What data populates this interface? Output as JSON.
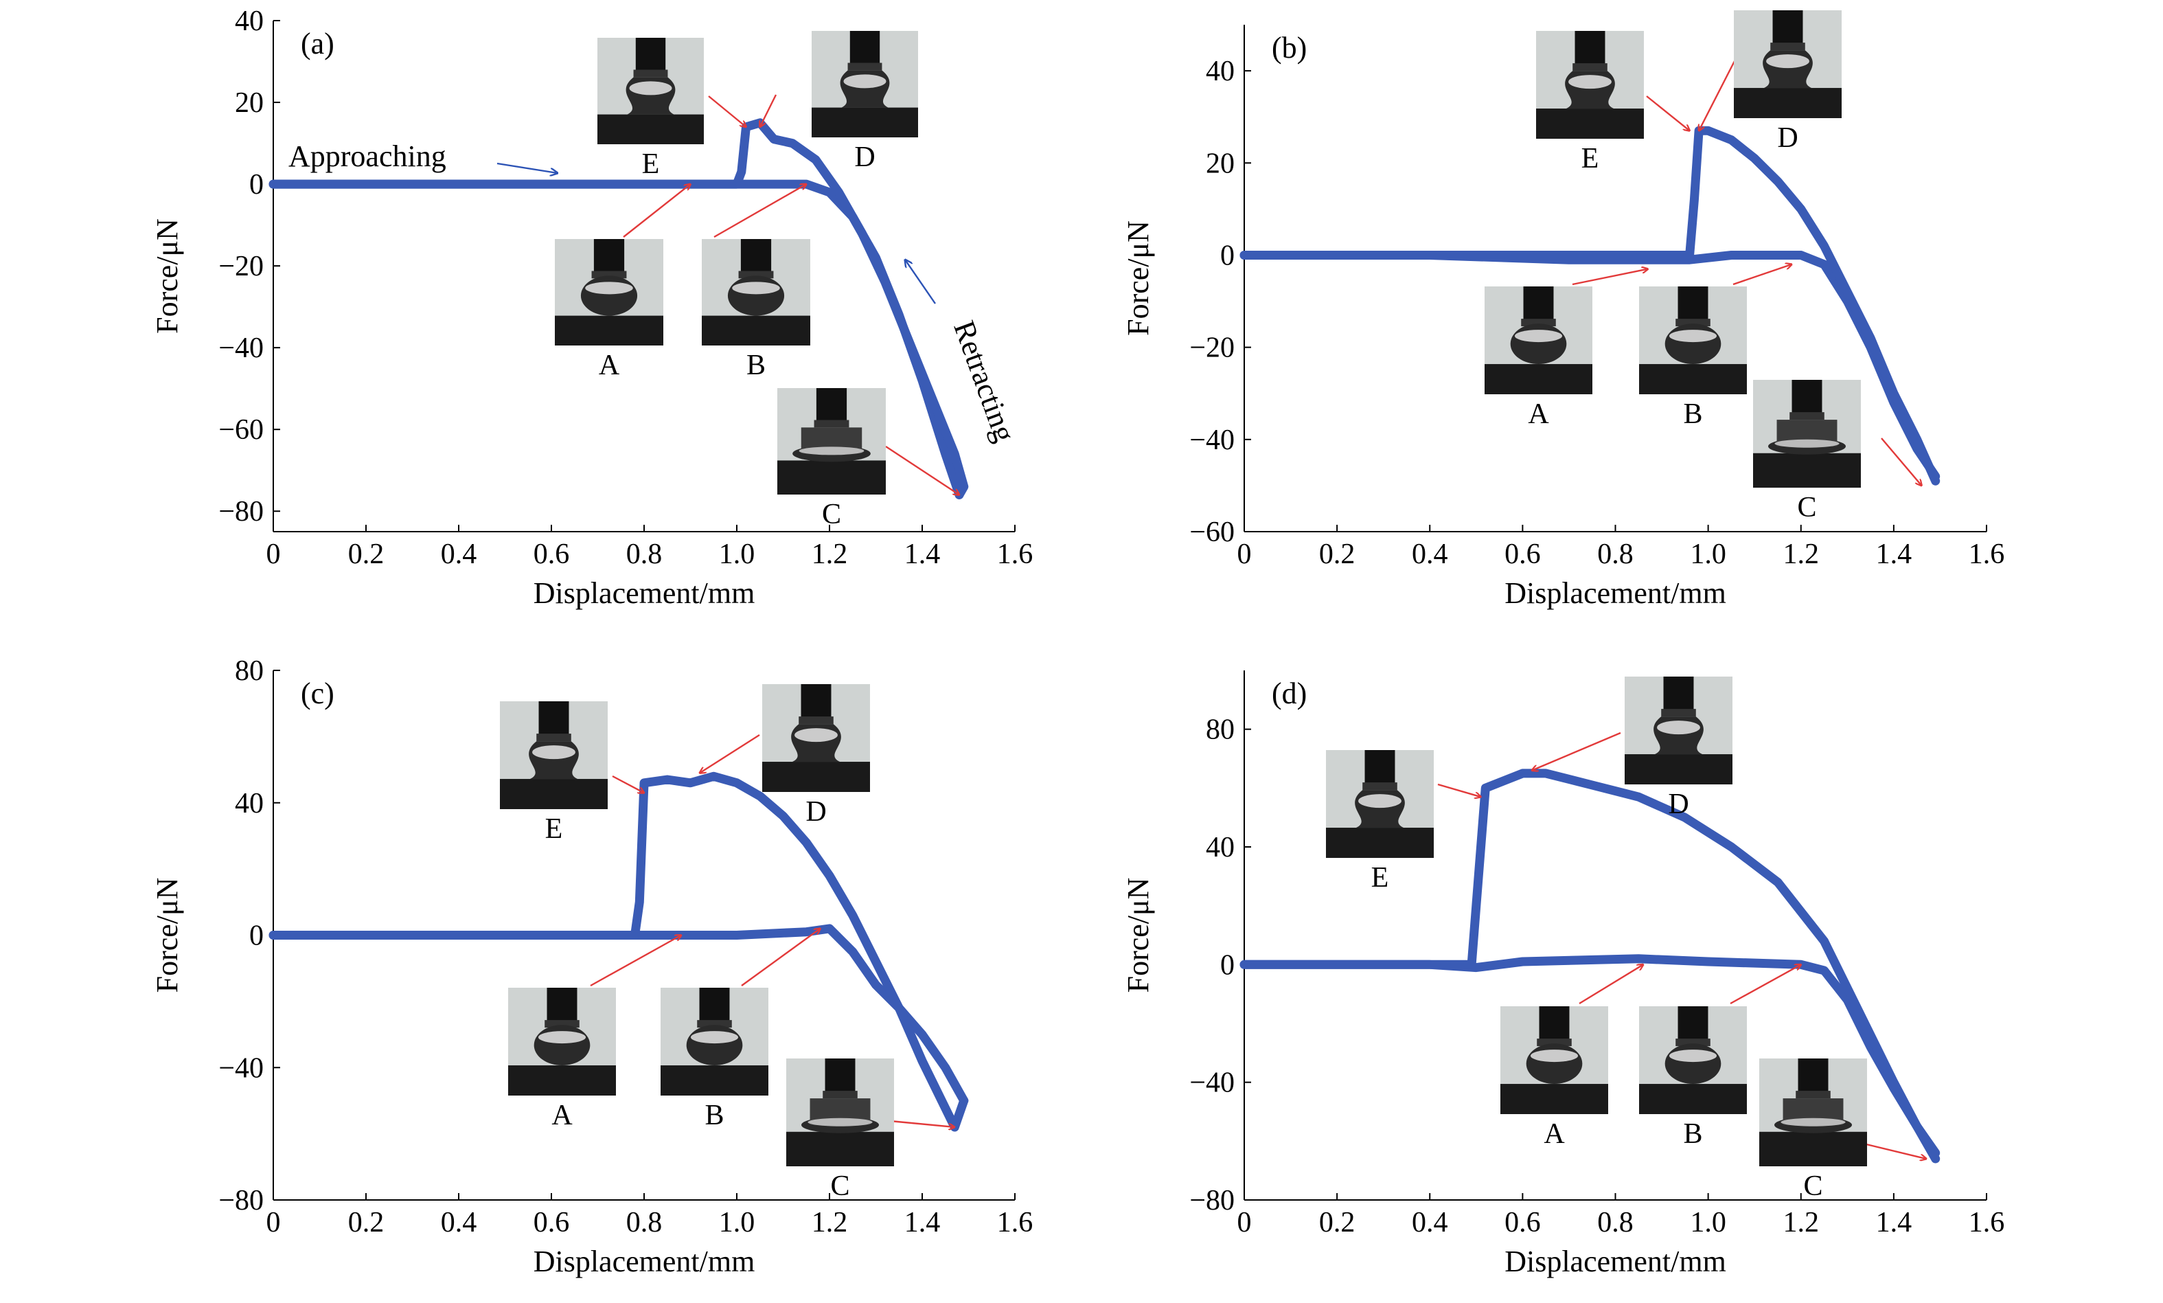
{
  "colors": {
    "curve": "#3a5bb5",
    "arrow_red": "#e23a3a",
    "arrow_blue": "#2b52b5",
    "axis": "#000000",
    "photo_bg": "#cfd3d2",
    "photo_dark": "#1a1a1a"
  },
  "chart_data": [
    {
      "id": "a",
      "panel_label": "(a)",
      "type": "line",
      "xlabel": "Displacement/mm",
      "ylabel": "Force/μN",
      "xlim": [
        0,
        1.6
      ],
      "ylim": [
        -85,
        40
      ],
      "xticks": [
        0,
        0.2,
        0.4,
        0.6,
        0.8,
        1.0,
        1.2,
        1.4,
        1.6
      ],
      "xtick_labels": [
        "0",
        "0.2",
        "0.4",
        "0.6",
        "0.8",
        "1.0",
        "1.2",
        "1.4",
        "1.6"
      ],
      "yticks": [
        40,
        20,
        0,
        -20,
        -40,
        -60,
        -80
      ],
      "ytick_labels": [
        "40",
        "20",
        "0",
        "−20",
        "−40",
        "−60",
        "−80"
      ],
      "series": [
        {
          "x": [
            0,
            0.2,
            0.4,
            0.6,
            0.8,
            0.95,
            1.02,
            1.15,
            1.2,
            1.25,
            1.3,
            1.35,
            1.4,
            1.45,
            1.48
          ],
          "y": [
            0,
            0,
            0,
            0,
            0,
            0,
            0,
            0,
            -2,
            -8,
            -18,
            -32,
            -48,
            -66,
            -76
          ]
        },
        {
          "x": [
            0,
            0.3,
            0.6,
            0.9,
            1.0,
            1.01,
            1.02,
            1.05,
            1.08,
            1.12,
            1.17,
            1.22,
            1.27,
            1.32,
            1.37,
            1.42,
            1.47,
            1.49,
            1.48
          ],
          "y": [
            0,
            0,
            0,
            0,
            0,
            3,
            14,
            15,
            11,
            10,
            6,
            -2,
            -12,
            -24,
            -38,
            -52,
            -66,
            -74,
            -76
          ]
        }
      ],
      "annotations": [
        {
          "text": "Approaching"
        },
        {
          "text": "Retracting"
        }
      ],
      "insets": [
        {
          "label": "E",
          "shape": "bridge",
          "x": 1.02,
          "y": 14
        },
        {
          "label": "D",
          "shape": "bridge",
          "x": 1.05,
          "y": 14
        },
        {
          "label": "A",
          "shape": "drop",
          "x": 0.9,
          "y": 0
        },
        {
          "label": "B",
          "shape": "drop",
          "x": 1.15,
          "y": 0
        },
        {
          "label": "C",
          "shape": "squash",
          "x": 1.48,
          "y": -76
        }
      ]
    },
    {
      "id": "b",
      "panel_label": "(b)",
      "type": "line",
      "xlabel": "Displacement/mm",
      "ylabel": "Force/μN",
      "xlim": [
        0,
        1.6
      ],
      "ylim": [
        -60,
        50
      ],
      "xticks": [
        0,
        0.2,
        0.4,
        0.6,
        0.8,
        1.0,
        1.2,
        1.4,
        1.6
      ],
      "xtick_labels": [
        "0",
        "0.2",
        "0.4",
        "0.6",
        "0.8",
        "1.0",
        "1.2",
        "1.4",
        "1.6"
      ],
      "yticks": [
        40,
        20,
        0,
        -20,
        -40,
        -60
      ],
      "ytick_labels": [
        "40",
        "20",
        "0",
        "−20",
        "−40",
        "−60"
      ],
      "series": [
        {
          "x": [
            0,
            0.4,
            0.7,
            0.9,
            0.96,
            1.05,
            1.2,
            1.25,
            1.3,
            1.35,
            1.4,
            1.45,
            1.49
          ],
          "y": [
            0,
            0,
            -1,
            -1,
            -1,
            0,
            0,
            -2,
            -10,
            -20,
            -32,
            -42,
            -48
          ]
        },
        {
          "x": [
            0,
            0.5,
            0.9,
            0.96,
            0.97,
            0.98,
            1.0,
            1.05,
            1.1,
            1.15,
            1.2,
            1.25,
            1.3,
            1.35,
            1.4,
            1.45,
            1.49
          ],
          "y": [
            0,
            0,
            0,
            0,
            12,
            27,
            27,
            25,
            21,
            16,
            10,
            2,
            -8,
            -18,
            -30,
            -40,
            -49
          ]
        }
      ],
      "annotations": [],
      "insets": [
        {
          "label": "E",
          "shape": "bridge",
          "x": 0.96,
          "y": 27
        },
        {
          "label": "D",
          "shape": "bridge",
          "x": 0.98,
          "y": 27
        },
        {
          "label": "A",
          "shape": "drop",
          "x": 0.87,
          "y": -3
        },
        {
          "label": "B",
          "shape": "drop",
          "x": 1.18,
          "y": -2
        },
        {
          "label": "C",
          "shape": "squash",
          "x": 1.46,
          "y": -50
        }
      ]
    },
    {
      "id": "c",
      "panel_label": "(c)",
      "type": "line",
      "xlabel": "Displacement/mm",
      "ylabel": "Force/μN",
      "xlim": [
        0,
        1.6
      ],
      "ylim": [
        -80,
        80
      ],
      "xticks": [
        0,
        0.2,
        0.4,
        0.6,
        0.8,
        1.0,
        1.2,
        1.4,
        1.6
      ],
      "xtick_labels": [
        "0",
        "0.2",
        "0.4",
        "0.6",
        "0.8",
        "1.0",
        "1.2",
        "1.4",
        "1.6"
      ],
      "yticks": [
        80,
        40,
        0,
        -40,
        -80
      ],
      "ytick_labels": [
        "80",
        "40",
        "0",
        "−40",
        "−80"
      ],
      "series": [
        {
          "x": [
            0,
            0.4,
            0.79,
            1.0,
            1.15,
            1.2,
            1.25,
            1.3,
            1.35,
            1.4,
            1.45,
            1.49
          ],
          "y": [
            0,
            0,
            0,
            0,
            1,
            2,
            -5,
            -15,
            -22,
            -30,
            -40,
            -50
          ]
        },
        {
          "x": [
            0,
            0.78,
            0.79,
            0.8,
            0.85,
            0.9,
            0.95,
            1.0,
            1.05,
            1.1,
            1.15,
            1.2,
            1.25,
            1.3,
            1.35,
            1.4,
            1.47,
            1.49
          ],
          "y": [
            0,
            0,
            10,
            46,
            47,
            46,
            48,
            46,
            42,
            36,
            28,
            18,
            6,
            -8,
            -22,
            -38,
            -58,
            -50
          ]
        }
      ],
      "annotations": [],
      "insets": [
        {
          "label": "E",
          "shape": "bridge",
          "x": 0.8,
          "y": 43
        },
        {
          "label": "D",
          "shape": "bridge",
          "x": 0.92,
          "y": 49
        },
        {
          "label": "A",
          "shape": "drop",
          "x": 0.88,
          "y": 0
        },
        {
          "label": "B",
          "shape": "drop",
          "x": 1.18,
          "y": 2
        },
        {
          "label": "C",
          "shape": "squash",
          "x": 1.47,
          "y": -58
        }
      ]
    },
    {
      "id": "d",
      "panel_label": "(d)",
      "type": "line",
      "xlabel": "Displacement/mm",
      "ylabel": "Force/μN",
      "xlim": [
        0,
        1.6
      ],
      "ylim": [
        -80,
        100
      ],
      "xticks": [
        0,
        0.2,
        0.4,
        0.6,
        0.8,
        1.0,
        1.2,
        1.4,
        1.6
      ],
      "xtick_labels": [
        "0",
        "0.2",
        "0.4",
        "0.6",
        "0.8",
        "1.0",
        "1.2",
        "1.4",
        "1.6"
      ],
      "yticks": [
        80,
        40,
        0,
        -40,
        -80
      ],
      "ytick_labels": [
        "80",
        "40",
        "0",
        "−40",
        "−80"
      ],
      "series": [
        {
          "x": [
            0,
            0.4,
            0.5,
            0.6,
            0.85,
            1.0,
            1.2,
            1.25,
            1.3,
            1.35,
            1.4,
            1.45,
            1.49
          ],
          "y": [
            0,
            0,
            -1,
            1,
            2,
            1,
            0,
            -2,
            -12,
            -28,
            -42,
            -55,
            -64
          ]
        },
        {
          "x": [
            0,
            0.49,
            0.5,
            0.52,
            0.6,
            0.65,
            0.75,
            0.85,
            0.95,
            1.05,
            1.15,
            1.25,
            1.3,
            1.35,
            1.4,
            1.45,
            1.49
          ],
          "y": [
            0,
            0,
            20,
            60,
            65,
            65,
            61,
            57,
            50,
            40,
            28,
            8,
            -8,
            -24,
            -40,
            -55,
            -66
          ]
        }
      ],
      "annotations": [],
      "insets": [
        {
          "label": "E",
          "shape": "bridge",
          "x": 0.51,
          "y": 57
        },
        {
          "label": "D",
          "shape": "bridge",
          "x": 0.62,
          "y": 66
        },
        {
          "label": "A",
          "shape": "drop",
          "x": 0.86,
          "y": 0
        },
        {
          "label": "B",
          "shape": "drop",
          "x": 1.2,
          "y": 0
        },
        {
          "label": "C",
          "shape": "squash",
          "x": 1.47,
          "y": -66
        }
      ]
    }
  ]
}
